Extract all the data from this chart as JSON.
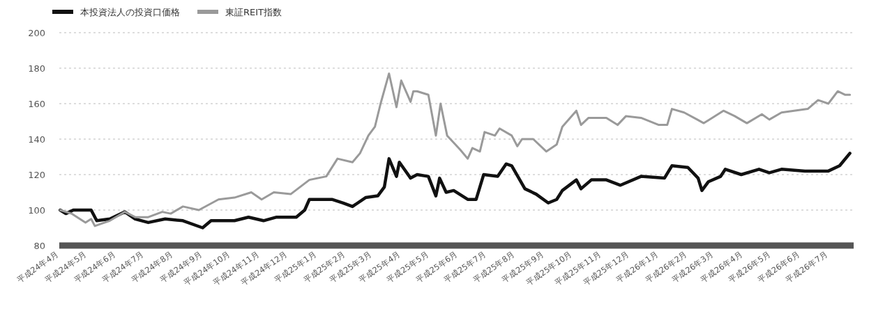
{
  "chart_data": {
    "type": "line",
    "ylim": [
      80,
      200
    ],
    "yticks": [
      80,
      100,
      120,
      140,
      160,
      180,
      200
    ],
    "xlim": [
      "2012-04-01",
      "2014-07-28"
    ],
    "xticks": [
      {
        "value": "2012-04-01",
        "label": "平成24年4月"
      },
      {
        "value": "2012-05-01",
        "label": "平成24年5月"
      },
      {
        "value": "2012-06-01",
        "label": "平成24年6月"
      },
      {
        "value": "2012-07-01",
        "label": "平成24年7月"
      },
      {
        "value": "2012-08-01",
        "label": "平成24年8月"
      },
      {
        "value": "2012-09-01",
        "label": "平成24年9月"
      },
      {
        "value": "2012-10-01",
        "label": "平成24年10月"
      },
      {
        "value": "2012-11-01",
        "label": "平成24年11月"
      },
      {
        "value": "2012-12-01",
        "label": "平成24年12月"
      },
      {
        "value": "2013-01-01",
        "label": "平成25年1月"
      },
      {
        "value": "2013-02-01",
        "label": "平成25年2月"
      },
      {
        "value": "2013-03-01",
        "label": "平成25年3月"
      },
      {
        "value": "2013-04-01",
        "label": "平成25年4月"
      },
      {
        "value": "2013-05-01",
        "label": "平成25年5月"
      },
      {
        "value": "2013-06-01",
        "label": "平成25年6月"
      },
      {
        "value": "2013-07-01",
        "label": "平成25年7月"
      },
      {
        "value": "2013-08-01",
        "label": "平成25年8月"
      },
      {
        "value": "2013-09-01",
        "label": "平成25年9月"
      },
      {
        "value": "2013-10-01",
        "label": "平成25年10月"
      },
      {
        "value": "2013-11-01",
        "label": "平成25年11月"
      },
      {
        "value": "2013-12-01",
        "label": "平成25年12月"
      },
      {
        "value": "2014-01-01",
        "label": "平成26年1月"
      },
      {
        "value": "2014-02-01",
        "label": "平成26年2月"
      },
      {
        "value": "2014-03-01",
        "label": "平成26年3月"
      },
      {
        "value": "2014-04-01",
        "label": "平成26年4月"
      },
      {
        "value": "2014-05-01",
        "label": "平成26年5月"
      },
      {
        "value": "2014-06-01",
        "label": "平成26年6月"
      },
      {
        "value": "2014-07-01",
        "label": "平成26年7月"
      }
    ],
    "grid": "y",
    "legend": "top left",
    "line_style": "solid",
    "series": [
      {
        "name": "本投資法人の投資口価格",
        "color": "#111111",
        "x": [
          "2012-04-02",
          "2012-04-08",
          "2012-04-16",
          "2012-05-05",
          "2012-05-11",
          "2012-05-25",
          "2012-06-10",
          "2012-06-21",
          "2012-07-05",
          "2012-07-23",
          "2012-08-11",
          "2012-09-01",
          "2012-09-10",
          "2012-10-05",
          "2012-10-20",
          "2012-11-05",
          "2012-11-19",
          "2012-12-10",
          "2012-12-19",
          "2012-12-24",
          "2013-01-17",
          "2013-01-29",
          "2013-02-08",
          "2013-02-22",
          "2013-03-07",
          "2013-03-14",
          "2013-03-19",
          "2013-03-27",
          "2013-03-30",
          "2013-04-11",
          "2013-04-18",
          "2013-04-30",
          "2013-05-08",
          "2013-05-12",
          "2013-05-19",
          "2013-05-27",
          "2013-06-11",
          "2013-06-20",
          "2013-06-28",
          "2013-07-13",
          "2013-07-22",
          "2013-07-28",
          "2013-08-11",
          "2013-08-23",
          "2013-09-05",
          "2013-09-14",
          "2013-09-20",
          "2013-10-05",
          "2013-10-10",
          "2013-10-21",
          "2013-11-06",
          "2013-11-21",
          "2013-12-13",
          "2014-01-07",
          "2014-01-15",
          "2014-02-01",
          "2014-02-12",
          "2014-02-16",
          "2014-02-23",
          "2014-03-08",
          "2014-03-13",
          "2014-03-30",
          "2014-04-18",
          "2014-04-29",
          "2014-05-12",
          "2014-06-06",
          "2014-07-01",
          "2014-07-13",
          "2014-07-24"
        ],
        "values": [
          100,
          98,
          100,
          100,
          94,
          95,
          99,
          95,
          93,
          95,
          94,
          90,
          94,
          94,
          96,
          94,
          96,
          96,
          100,
          106,
          106,
          104,
          102,
          107,
          108,
          113,
          129,
          119,
          127,
          118,
          120,
          119,
          108,
          118,
          110,
          111,
          106,
          106,
          120,
          119,
          126,
          125,
          112,
          109,
          104,
          106,
          111,
          117,
          112,
          117,
          117,
          114,
          119,
          118,
          125,
          124,
          118,
          111,
          116,
          119,
          123,
          120,
          123,
          121,
          123,
          122,
          122,
          125,
          132
        ]
      },
      {
        "name": "東証REIT指数",
        "color": "#9a9a9a",
        "x": [
          "2012-04-02",
          "2012-04-14",
          "2012-04-29",
          "2012-05-05",
          "2012-05-09",
          "2012-05-25",
          "2012-06-10",
          "2012-06-21",
          "2012-07-05",
          "2012-07-20",
          "2012-07-29",
          "2012-08-11",
          "2012-08-28",
          "2012-09-18",
          "2012-10-05",
          "2012-10-23",
          "2012-11-03",
          "2012-11-16",
          "2012-12-04",
          "2012-12-24",
          "2013-01-11",
          "2013-01-23",
          "2013-02-08",
          "2013-02-16",
          "2013-02-25",
          "2013-03-04",
          "2013-03-10",
          "2013-03-19",
          "2013-03-27",
          "2013-04-01",
          "2013-04-11",
          "2013-04-14",
          "2013-04-18",
          "2013-04-30",
          "2013-05-08",
          "2013-05-13",
          "2013-05-20",
          "2013-06-03",
          "2013-06-11",
          "2013-06-16",
          "2013-06-24",
          "2013-06-29",
          "2013-07-10",
          "2013-07-15",
          "2013-07-28",
          "2013-08-03",
          "2013-08-08",
          "2013-08-20",
          "2013-09-03",
          "2013-09-14",
          "2013-09-20",
          "2013-10-05",
          "2013-10-10",
          "2013-10-18",
          "2013-11-06",
          "2013-11-18",
          "2013-11-27",
          "2013-12-13",
          "2014-01-01",
          "2014-01-10",
          "2014-01-15",
          "2014-01-28",
          "2014-02-11",
          "2014-02-18",
          "2014-03-11",
          "2014-03-23",
          "2014-04-05",
          "2014-04-21",
          "2014-04-29",
          "2014-05-12",
          "2014-06-09",
          "2014-06-20",
          "2014-07-01",
          "2014-07-11",
          "2014-07-19",
          "2014-07-24"
        ],
        "values": [
          100,
          98,
          93,
          95,
          91,
          94,
          99,
          96,
          96,
          99,
          98,
          102,
          100,
          106,
          107,
          110,
          106,
          110,
          109,
          117,
          119,
          129,
          127,
          132,
          142,
          147,
          160,
          177,
          158,
          173,
          161,
          167,
          167,
          165,
          142,
          160,
          142,
          134,
          129,
          135,
          133,
          144,
          142,
          146,
          142,
          136,
          140,
          140,
          133,
          137,
          147,
          156,
          148,
          152,
          152,
          148,
          153,
          152,
          148,
          148,
          157,
          155,
          151,
          149,
          156,
          153,
          149,
          154,
          151,
          155,
          157,
          162,
          160,
          167,
          165,
          165
        ]
      }
    ]
  }
}
